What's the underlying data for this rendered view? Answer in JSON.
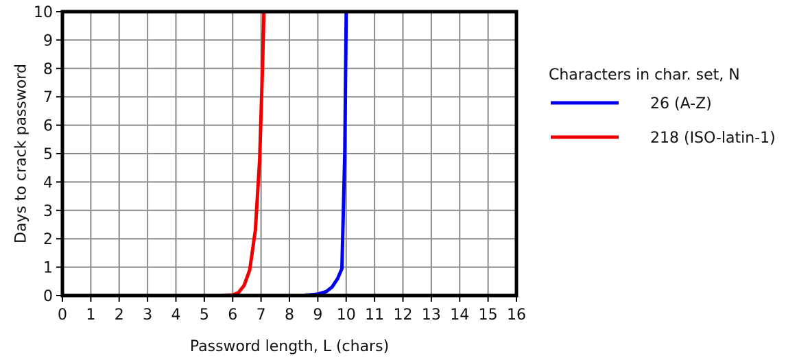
{
  "chart_data": {
    "type": "line",
    "title": "",
    "xlabel": "Password length, L (chars)",
    "ylabel": "Days to crack password",
    "xlim": [
      0,
      16
    ],
    "ylim": [
      0,
      10
    ],
    "x_ticks": [
      "0",
      "1",
      "2",
      "3",
      "4",
      "5",
      "6",
      "7",
      "8",
      "9",
      "10",
      "11",
      "12",
      "13",
      "14",
      "15",
      "16"
    ],
    "y_ticks": [
      "0",
      "1",
      "2",
      "3",
      "4",
      "5",
      "6",
      "7",
      "8",
      "9",
      "10"
    ],
    "grid": true,
    "legend": {
      "title": "Characters in char. set, N",
      "placement": "right, outside plot"
    },
    "series": [
      {
        "name": "26 (A-Z)",
        "color": "#0000ee",
        "points": [
          [
            8.0,
            0.0
          ],
          [
            8.5,
            0.0
          ],
          [
            9.0,
            0.05
          ],
          [
            9.3,
            0.14
          ],
          [
            9.5,
            0.3
          ],
          [
            9.7,
            0.6
          ],
          [
            9.85,
            0.95
          ],
          [
            9.95,
            5.0
          ],
          [
            10.0,
            10.0
          ]
        ]
      },
      {
        "name": "218 (ISO-latin-1)",
        "color": "#ee0000",
        "points": [
          [
            5.0,
            0.0
          ],
          [
            5.6,
            0.0
          ],
          [
            6.0,
            0.02
          ],
          [
            6.2,
            0.1
          ],
          [
            6.4,
            0.35
          ],
          [
            6.6,
            0.9
          ],
          [
            6.8,
            2.3
          ],
          [
            6.95,
            4.8
          ],
          [
            7.05,
            8.0
          ],
          [
            7.1,
            10.0
          ]
        ]
      }
    ]
  }
}
